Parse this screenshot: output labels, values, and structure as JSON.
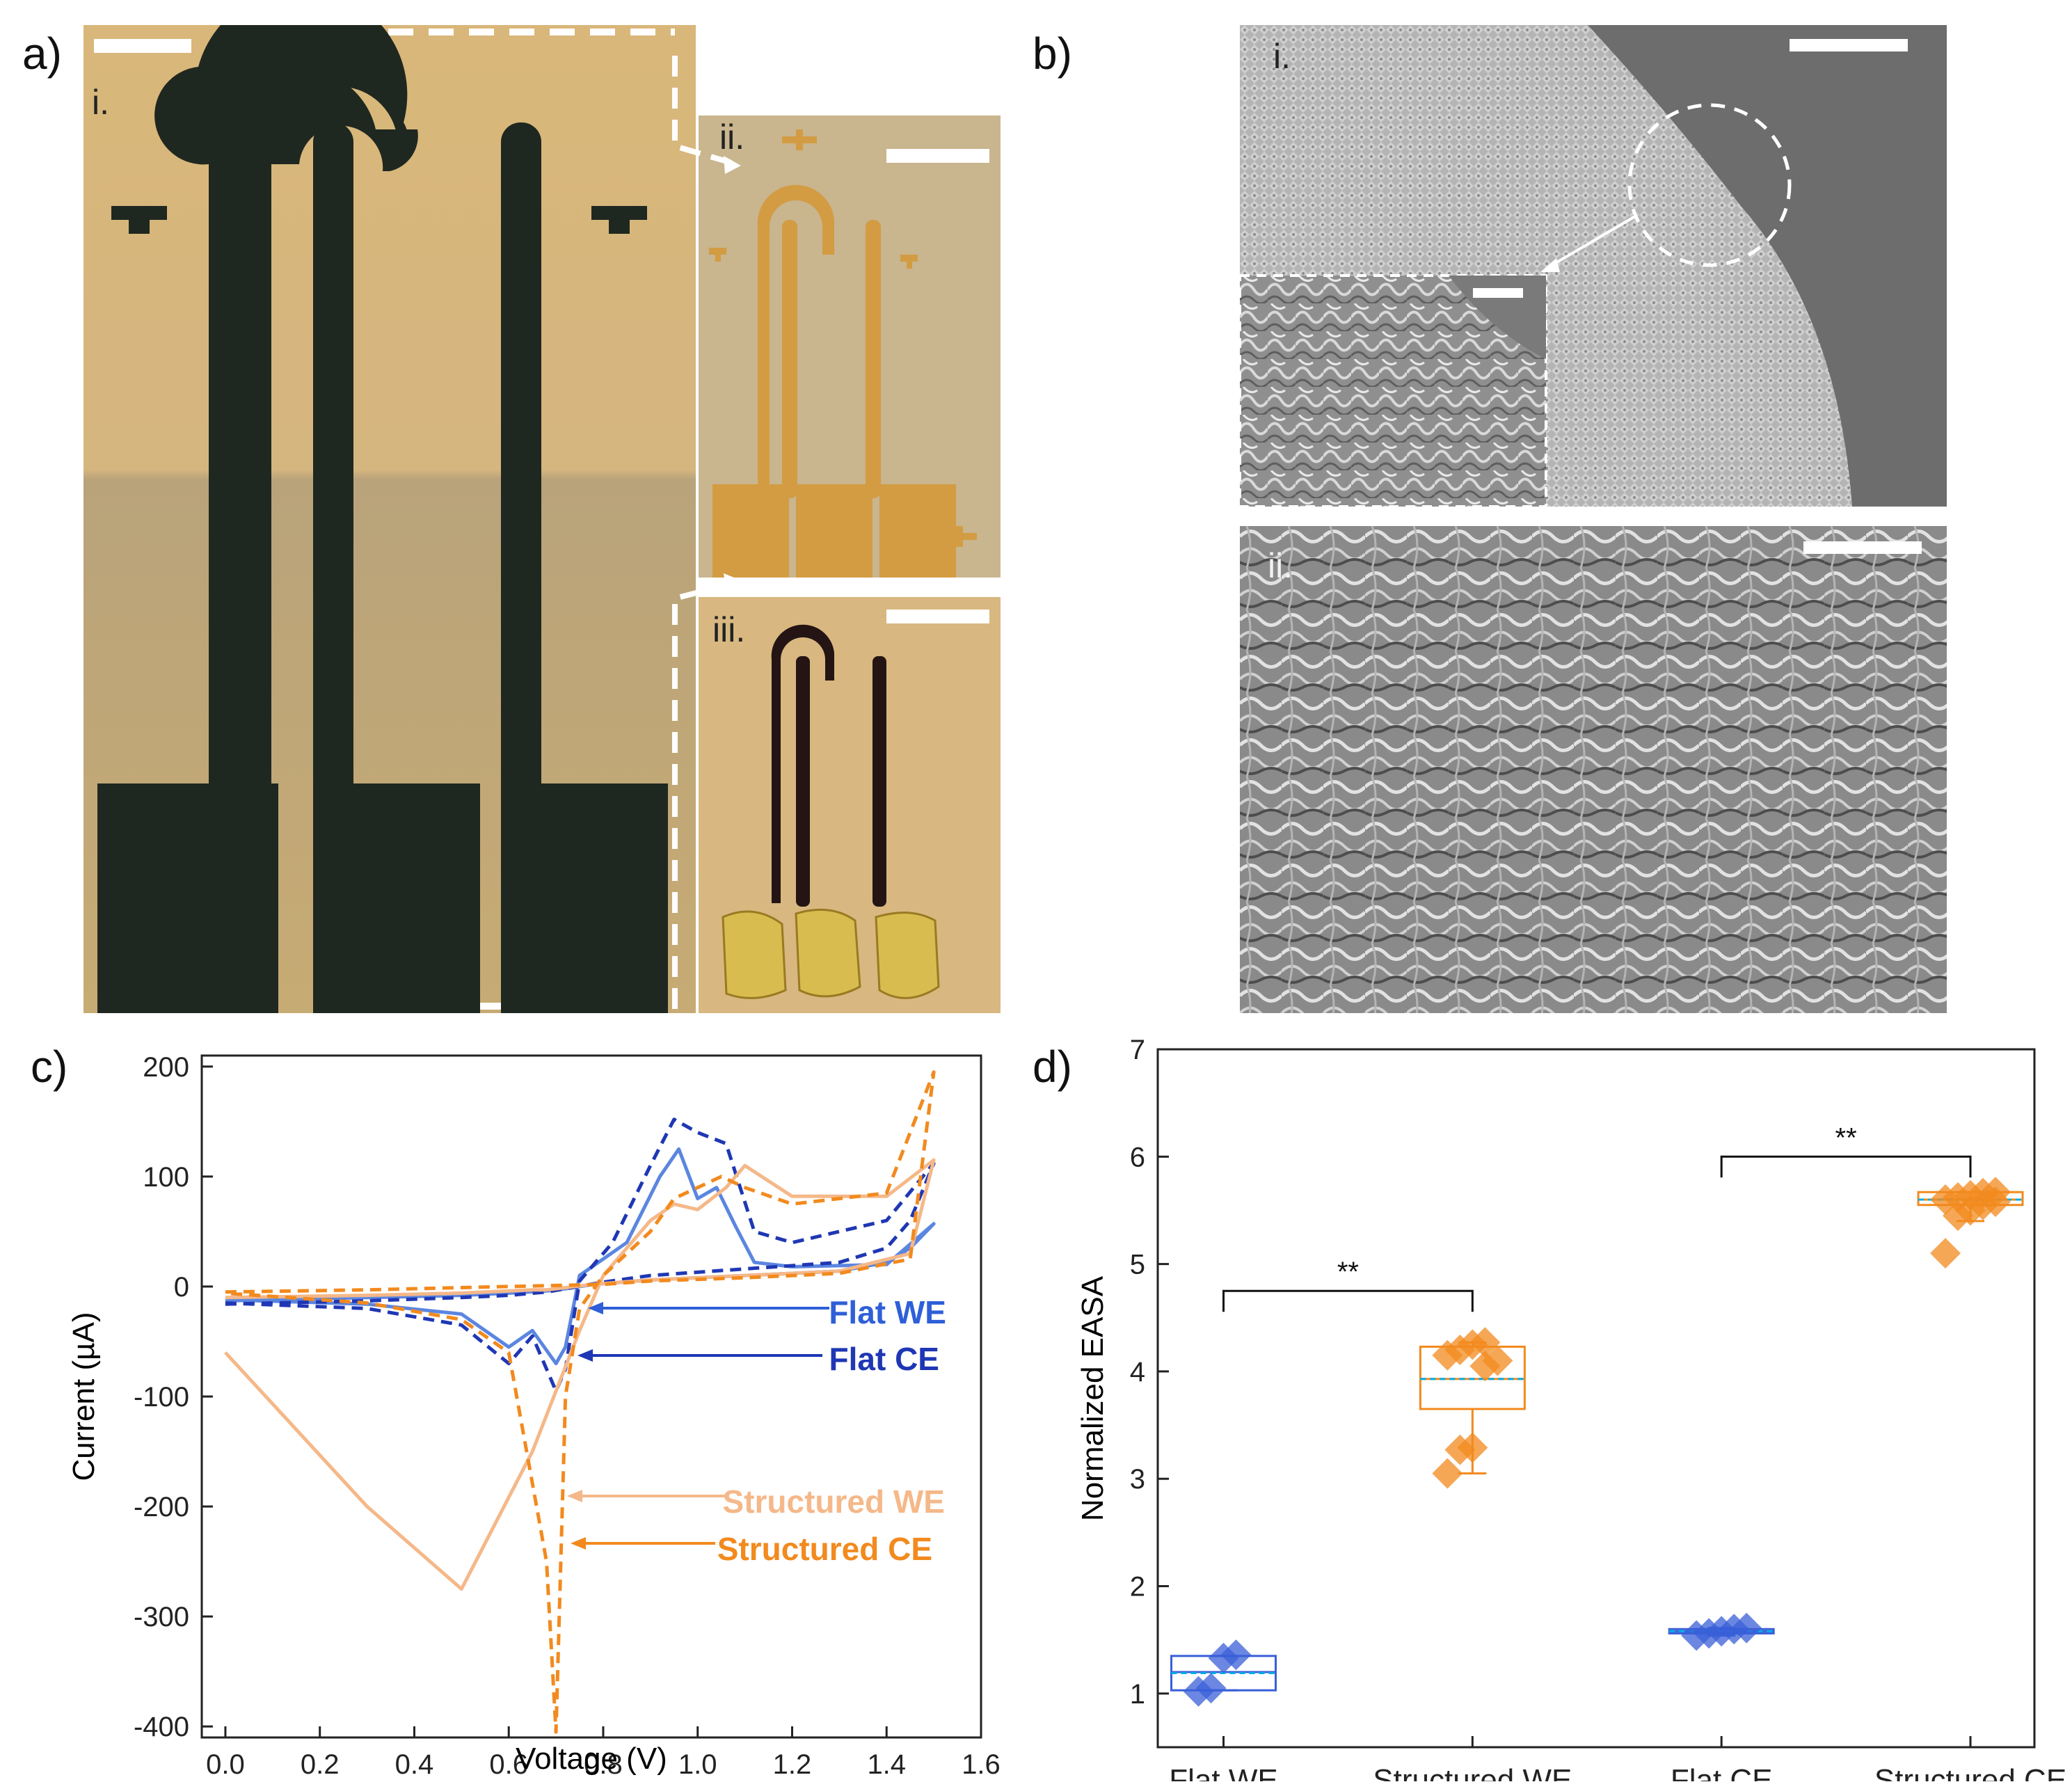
{
  "panels": {
    "a": {
      "letter": "a)",
      "labels": [
        "i.",
        "ii.",
        "iii."
      ],
      "colors": {
        "gold": "#c9a24e",
        "bg": "#cfb27a",
        "dark": "#1d2620"
      }
    },
    "b": {
      "letter": "b)",
      "labels": [
        "i.",
        "ii."
      ]
    },
    "c": {
      "letter": "c)"
    },
    "d": {
      "letter": "d)"
    }
  },
  "chart_data": [
    {
      "type": "line",
      "panel": "c",
      "xlabel": "Voltage (V)",
      "ylabel": "Current (µA)",
      "xlim": [
        -0.05,
        1.6
      ],
      "ylim": [
        -410,
        210
      ],
      "xticks": [
        "0.0",
        "0.2",
        "0.4",
        "0.6",
        "0.8",
        "1.0",
        "1.2",
        "1.4",
        "1.6"
      ],
      "yticks": [
        "200",
        "100",
        "0",
        "-100",
        "-200",
        "-300",
        "-400"
      ],
      "annotations": [
        "Flat WE",
        "Flat CE",
        "Structured WE",
        "Structured CE"
      ],
      "series": [
        {
          "name": "Flat WE",
          "color": "#5b86e0",
          "dash": "solid",
          "x": [
            0.0,
            0.3,
            0.5,
            0.6,
            0.68,
            0.72,
            0.78,
            0.9,
            1.1,
            1.3,
            1.4,
            1.45,
            1.5,
            1.4,
            1.2,
            1.12,
            1.08,
            1.04,
            1.0,
            0.96,
            0.92,
            0.85,
            0.75,
            0.72,
            0.7,
            0.65,
            0.6,
            0.5,
            0.3,
            0.0
          ],
          "y": [
            -13,
            -10,
            -8,
            -6,
            -4,
            -2,
            2,
            6,
            10,
            14,
            22,
            35,
            57,
            20,
            18,
            22,
            55,
            90,
            80,
            125,
            100,
            40,
            10,
            -55,
            -70,
            -40,
            -55,
            -25,
            -16,
            -12
          ]
        },
        {
          "name": "Flat CE",
          "color": "#1f37b4",
          "dash": "dashed",
          "x": [
            0.0,
            0.3,
            0.5,
            0.6,
            0.68,
            0.72,
            0.8,
            0.9,
            1.1,
            1.3,
            1.4,
            1.45,
            1.5,
            1.4,
            1.2,
            1.12,
            1.06,
            1.0,
            0.95,
            0.9,
            0.82,
            0.75,
            0.72,
            0.7,
            0.65,
            0.6,
            0.5,
            0.3,
            0.0
          ],
          "y": [
            -16,
            -13,
            -10,
            -8,
            -5,
            -2,
            4,
            10,
            16,
            22,
            35,
            60,
            112,
            60,
            40,
            50,
            130,
            140,
            152,
            110,
            40,
            5,
            -75,
            -95,
            -45,
            -70,
            -35,
            -20,
            -15
          ]
        },
        {
          "name": "Structured WE",
          "color": "#f5b889",
          "dash": "solid",
          "x": [
            0.0,
            0.3,
            0.5,
            0.55,
            0.6,
            0.65,
            0.68,
            0.7,
            0.72,
            0.74,
            0.78,
            0.9,
            1.1,
            1.3,
            1.45,
            1.5,
            1.4,
            1.2,
            1.1,
            1.06,
            1.0,
            0.95,
            0.9,
            0.8,
            0.75,
            0.65,
            0.5,
            0.3,
            0.0
          ],
          "y": [
            -10,
            -8,
            -6,
            -5,
            -4,
            -3,
            -3,
            -2,
            -1,
            0,
            2,
            6,
            10,
            14,
            30,
            115,
            82,
            82,
            110,
            90,
            70,
            75,
            60,
            10,
            -40,
            -150,
            -275,
            -200,
            -60
          ]
        },
        {
          "name": "Structured CE",
          "color": "#f28a1e",
          "dash": "dashed",
          "x": [
            0.0,
            0.3,
            0.5,
            0.6,
            0.7,
            0.8,
            0.9,
            1.1,
            1.3,
            1.45,
            1.5,
            1.4,
            1.2,
            1.1,
            1.05,
            1.0,
            0.95,
            0.9,
            0.8,
            0.75,
            0.72,
            0.7,
            0.68,
            0.6,
            0.5,
            0.3,
            0.0
          ],
          "y": [
            -5,
            -3,
            -1,
            0,
            1,
            2,
            5,
            8,
            12,
            25,
            195,
            85,
            75,
            90,
            100,
            90,
            80,
            50,
            10,
            -20,
            -100,
            -405,
            -250,
            -60,
            -30,
            -15,
            -6
          ]
        }
      ]
    },
    {
      "type": "box",
      "panel": "d",
      "ylabel": "Normalized EASA",
      "ylim": [
        0.5,
        7
      ],
      "yticks": [
        "1",
        "2",
        "3",
        "4",
        "5",
        "6",
        "7"
      ],
      "categories": [
        "Flat WE",
        "Structured WE",
        "Flat CE",
        "Structured CE"
      ],
      "boxes": [
        {
          "category": "Flat WE",
          "color": "#3a5fd8",
          "q1": 1.03,
          "median": 1.2,
          "mean": 1.19,
          "q3": 1.35,
          "whisker_low": 1.03,
          "whisker_high": 1.35,
          "points": [
            1.02,
            1.05,
            1.33,
            1.36
          ]
        },
        {
          "category": "Structured WE",
          "color": "#f28a1e",
          "q1": 3.65,
          "median": 3.93,
          "mean": 3.93,
          "q3": 4.23,
          "whisker_low": 3.05,
          "whisker_high": 4.27,
          "points": [
            3.05,
            3.27,
            3.29,
            4.05,
            4.1,
            4.15,
            4.2,
            4.25,
            4.27
          ]
        },
        {
          "category": "Flat CE",
          "color": "#3a5fd8",
          "q1": 1.56,
          "median": 1.58,
          "mean": 1.58,
          "q3": 1.6,
          "whisker_low": 1.54,
          "whisker_high": 1.61,
          "points": [
            1.54,
            1.56,
            1.58,
            1.6,
            1.61
          ]
        },
        {
          "category": "Structured CE",
          "color": "#f28a1e",
          "q1": 5.55,
          "median": 5.6,
          "mean": 5.6,
          "q3": 5.67,
          "whisker_low": 5.4,
          "whisker_high": 5.67,
          "points": [
            5.1,
            5.45,
            5.5,
            5.55,
            5.58,
            5.6,
            5.62,
            5.64,
            5.66,
            5.67
          ]
        }
      ],
      "significance": [
        {
          "from": "Flat WE",
          "to": "Structured WE",
          "label": "**",
          "y": 4.75
        },
        {
          "from": "Flat CE",
          "to": "Structured CE",
          "label": "**",
          "y": 6.0
        }
      ]
    }
  ]
}
